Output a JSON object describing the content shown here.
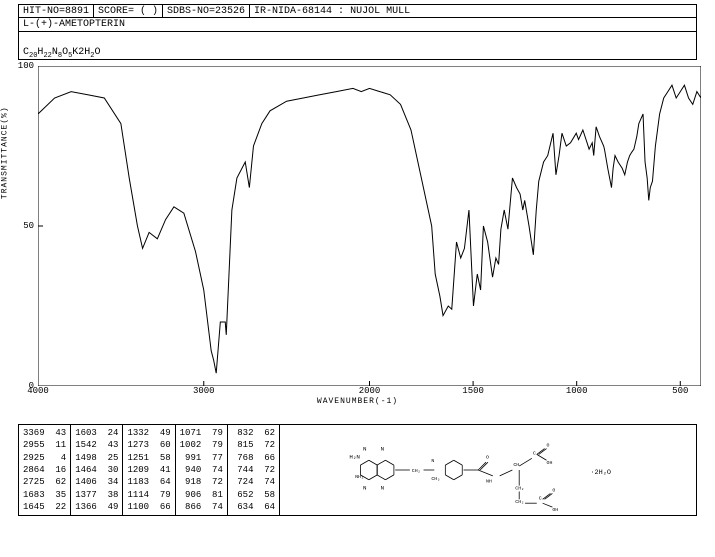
{
  "header": {
    "hit_no": "HIT-NO=8891",
    "score": "SCORE=  (  )",
    "sdbs_no": "SDBS-NO=23526",
    "ir_info": "IR-NIDA-68144 : NUJOL MULL"
  },
  "compound_name": "L-(+)-AMETOPTERIN",
  "formula_html": "C<sub>20</sub>H<sub>22</sub>N<sub>8</sub>O<sub>5</sub>K2H<sub>2</sub>O",
  "chart": {
    "type": "line",
    "xlabel": "WAVENUMBER(-1)",
    "ylabel": "TRANSMITTANCE(%)",
    "xlim": [
      4000,
      400
    ],
    "ylim": [
      0,
      100
    ],
    "xticks": [
      4000,
      3000,
      2000,
      1500,
      1000,
      500
    ],
    "yticks": [
      0,
      50,
      100
    ],
    "x_nonlinear_split": 2000,
    "line_color": "#000000",
    "line_width": 1,
    "background_color": "#ffffff",
    "border_color": "#000000",
    "data": [
      [
        4000,
        85
      ],
      [
        3900,
        90
      ],
      [
        3800,
        92
      ],
      [
        3700,
        91
      ],
      [
        3600,
        90
      ],
      [
        3500,
        82
      ],
      [
        3450,
        65
      ],
      [
        3400,
        50
      ],
      [
        3369,
        43
      ],
      [
        3330,
        48
      ],
      [
        3280,
        46
      ],
      [
        3230,
        52
      ],
      [
        3180,
        56
      ],
      [
        3120,
        54
      ],
      [
        3050,
        42
      ],
      [
        3000,
        30
      ],
      [
        2955,
        11
      ],
      [
        2940,
        8
      ],
      [
        2925,
        4
      ],
      [
        2900,
        20
      ],
      [
        2870,
        20
      ],
      [
        2864,
        16
      ],
      [
        2830,
        55
      ],
      [
        2800,
        65
      ],
      [
        2750,
        70
      ],
      [
        2725,
        62
      ],
      [
        2700,
        75
      ],
      [
        2650,
        82
      ],
      [
        2600,
        86
      ],
      [
        2500,
        89
      ],
      [
        2400,
        90
      ],
      [
        2300,
        91
      ],
      [
        2200,
        92
      ],
      [
        2100,
        93
      ],
      [
        2050,
        92
      ],
      [
        2000,
        93
      ],
      [
        1950,
        92
      ],
      [
        1900,
        91
      ],
      [
        1850,
        88
      ],
      [
        1800,
        80
      ],
      [
        1750,
        65
      ],
      [
        1700,
        50
      ],
      [
        1683,
        35
      ],
      [
        1660,
        28
      ],
      [
        1645,
        22
      ],
      [
        1620,
        25
      ],
      [
        1603,
        24
      ],
      [
        1580,
        45
      ],
      [
        1560,
        40
      ],
      [
        1542,
        43
      ],
      [
        1520,
        55
      ],
      [
        1498,
        25
      ],
      [
        1480,
        35
      ],
      [
        1464,
        30
      ],
      [
        1450,
        50
      ],
      [
        1430,
        45
      ],
      [
        1406,
        34
      ],
      [
        1390,
        40
      ],
      [
        1377,
        38
      ],
      [
        1366,
        49
      ],
      [
        1350,
        55
      ],
      [
        1332,
        49
      ],
      [
        1310,
        65
      ],
      [
        1290,
        62
      ],
      [
        1273,
        60
      ],
      [
        1260,
        55
      ],
      [
        1251,
        58
      ],
      [
        1230,
        50
      ],
      [
        1209,
        41
      ],
      [
        1195,
        55
      ],
      [
        1183,
        64
      ],
      [
        1160,
        70
      ],
      [
        1140,
        72
      ],
      [
        1114,
        79
      ],
      [
        1100,
        66
      ],
      [
        1085,
        72
      ],
      [
        1071,
        79
      ],
      [
        1050,
        75
      ],
      [
        1030,
        76
      ],
      [
        1002,
        79
      ],
      [
        991,
        77
      ],
      [
        970,
        80
      ],
      [
        950,
        76
      ],
      [
        940,
        74
      ],
      [
        925,
        76
      ],
      [
        918,
        72
      ],
      [
        906,
        81
      ],
      [
        890,
        78
      ],
      [
        870,
        75
      ],
      [
        866,
        74
      ],
      [
        850,
        68
      ],
      [
        832,
        62
      ],
      [
        824,
        68
      ],
      [
        815,
        72
      ],
      [
        800,
        70
      ],
      [
        780,
        68
      ],
      [
        768,
        66
      ],
      [
        755,
        70
      ],
      [
        744,
        72
      ],
      [
        735,
        73
      ],
      [
        724,
        74
      ],
      [
        710,
        78
      ],
      [
        700,
        82
      ],
      [
        680,
        85
      ],
      [
        670,
        70
      ],
      [
        660,
        65
      ],
      [
        652,
        58
      ],
      [
        645,
        62
      ],
      [
        634,
        64
      ],
      [
        620,
        75
      ],
      [
        600,
        85
      ],
      [
        580,
        90
      ],
      [
        560,
        92
      ],
      [
        540,
        94
      ],
      [
        520,
        90
      ],
      [
        500,
        92
      ],
      [
        480,
        94
      ],
      [
        460,
        90
      ],
      [
        440,
        88
      ],
      [
        420,
        92
      ],
      [
        400,
        90
      ]
    ]
  },
  "peak_table": {
    "columns": [
      [
        [
          3369,
          43
        ],
        [
          2955,
          11
        ],
        [
          2925,
          4
        ],
        [
          2864,
          16
        ],
        [
          2725,
          62
        ],
        [
          1683,
          35
        ],
        [
          1645,
          22
        ]
      ],
      [
        [
          1603,
          24
        ],
        [
          1542,
          43
        ],
        [
          1498,
          25
        ],
        [
          1464,
          30
        ],
        [
          1406,
          34
        ],
        [
          1377,
          38
        ],
        [
          1366,
          49
        ]
      ],
      [
        [
          1332,
          49
        ],
        [
          1273,
          60
        ],
        [
          1251,
          58
        ],
        [
          1209,
          41
        ],
        [
          1183,
          64
        ],
        [
          1114,
          79
        ],
        [
          1100,
          66
        ]
      ],
      [
        [
          1071,
          79
        ],
        [
          1002,
          79
        ],
        [
          991,
          77
        ],
        [
          940,
          74
        ],
        [
          918,
          72
        ],
        [
          906,
          81
        ],
        [
          866,
          74
        ]
      ],
      [
        [
          832,
          62
        ],
        [
          815,
          72
        ],
        [
          768,
          66
        ],
        [
          744,
          72
        ],
        [
          724,
          74
        ],
        [
          652,
          58
        ],
        [
          634,
          64
        ]
      ]
    ]
  },
  "structure_annotation": "·2H₂O"
}
